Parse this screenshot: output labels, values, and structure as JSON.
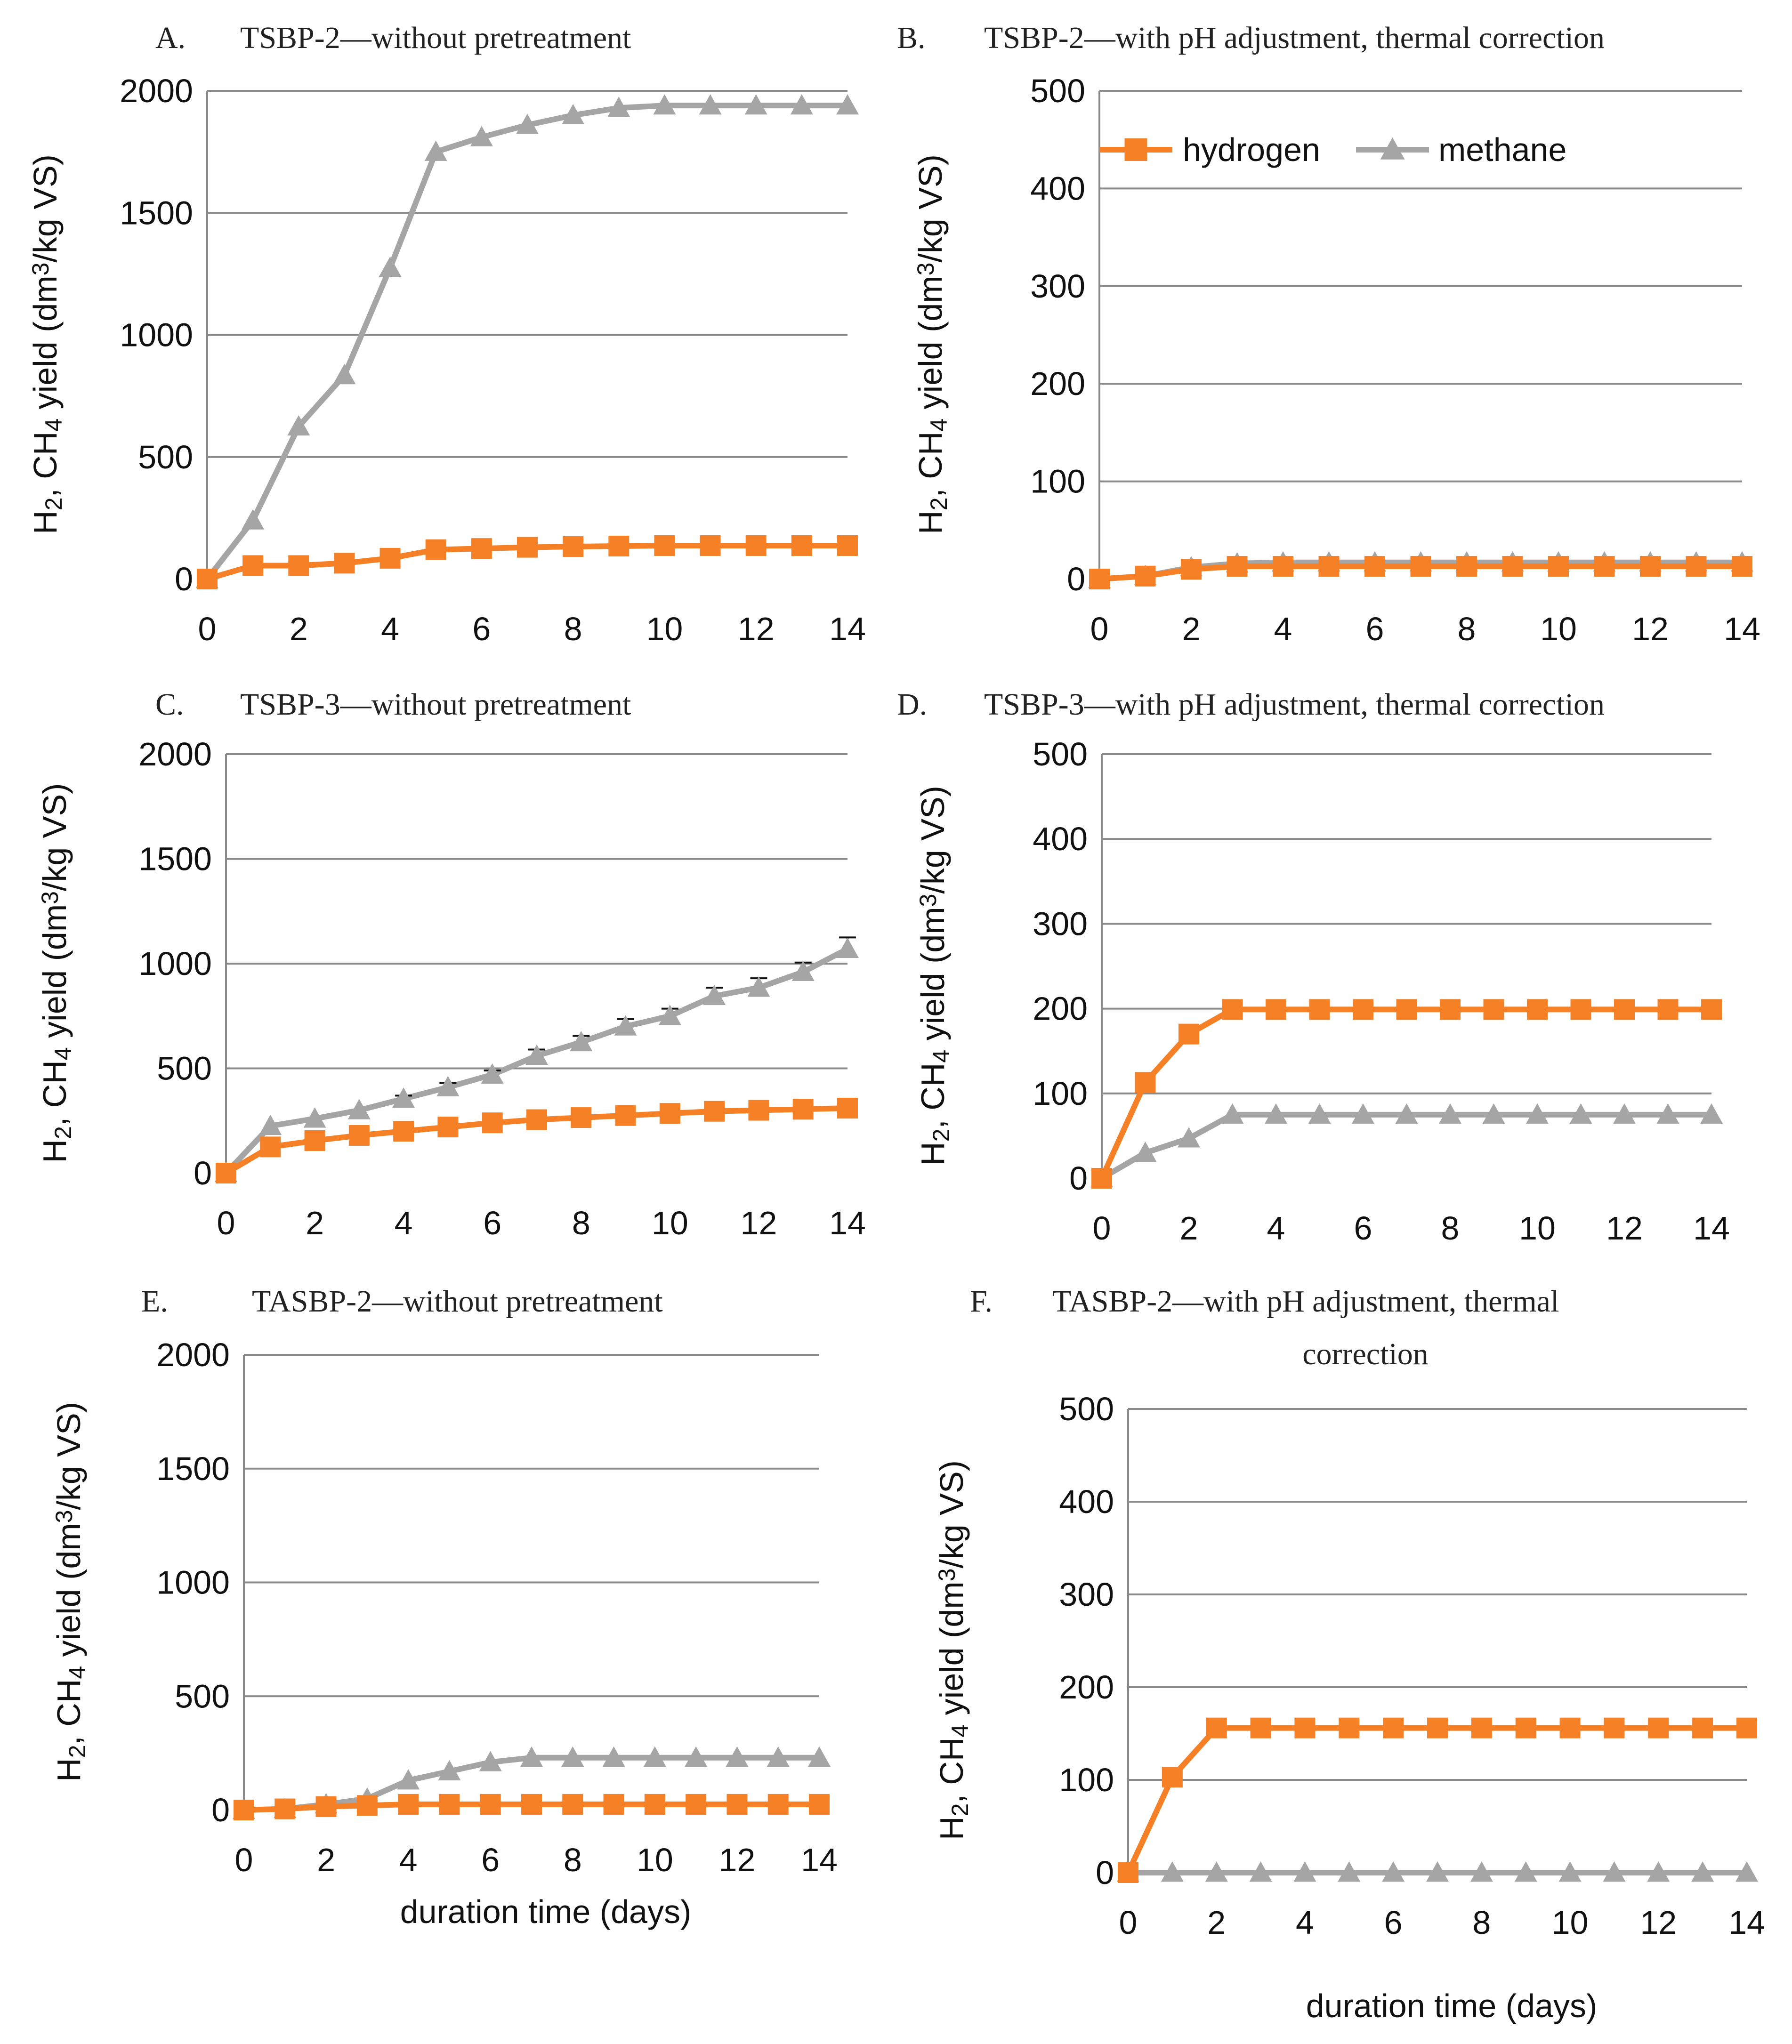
{
  "colors": {
    "hydrogen": "#F58025",
    "methane": "#A5A5A5",
    "grid": "#8A8A8A",
    "error_bar": "#111111"
  },
  "legend": {
    "hydrogen": "hydrogen",
    "methane": "methane"
  },
  "chart_data": [
    {
      "id": "A",
      "type": "line",
      "letter": "A.",
      "title": "TSBP-2—without pretreatment",
      "ylabel": "H2, CH4 yield (dm3/kg VS)",
      "xlabel": "",
      "ylim": [
        0,
        2000
      ],
      "yticks": [
        0,
        500,
        1000,
        1500,
        2000
      ],
      "xlim": [
        0,
        14
      ],
      "xticks": [
        0,
        2,
        4,
        6,
        8,
        10,
        12,
        14
      ],
      "grid": true,
      "legend": false,
      "x": [
        0,
        1,
        2,
        3,
        4,
        5,
        6,
        7,
        8,
        9,
        10,
        11,
        12,
        13,
        14
      ],
      "series": [
        {
          "name": "hydrogen",
          "marker": "square",
          "values": [
            0,
            55,
            55,
            65,
            85,
            120,
            125,
            130,
            133,
            135,
            137,
            137,
            137,
            137,
            137
          ]
        },
        {
          "name": "methane",
          "marker": "triangle",
          "values": [
            0,
            240,
            625,
            835,
            1275,
            1750,
            1810,
            1860,
            1900,
            1930,
            1940,
            1940,
            1940,
            1940,
            1940
          ]
        }
      ]
    },
    {
      "id": "B",
      "type": "line",
      "letter": "B.",
      "title": "TSBP-2—with pH adjustment, thermal correction",
      "ylabel": "H2, CH4 yield (dm3/kg VS)",
      "xlabel": "",
      "ylim": [
        0,
        500
      ],
      "yticks": [
        0,
        100,
        200,
        300,
        400,
        500
      ],
      "xlim": [
        0,
        14
      ],
      "xticks": [
        0,
        2,
        4,
        6,
        8,
        10,
        12,
        14
      ],
      "grid": true,
      "legend": true,
      "x": [
        0,
        1,
        2,
        3,
        4,
        5,
        6,
        7,
        8,
        9,
        10,
        11,
        12,
        13,
        14
      ],
      "series": [
        {
          "name": "hydrogen",
          "marker": "square",
          "values": [
            0,
            3,
            10,
            13,
            13,
            13,
            13,
            13,
            13,
            13,
            13,
            13,
            13,
            13,
            13
          ]
        },
        {
          "name": "methane",
          "marker": "triangle",
          "values": [
            0,
            3,
            12,
            16,
            17,
            17,
            17,
            17,
            17,
            17,
            17,
            17,
            17,
            17,
            17
          ]
        }
      ]
    },
    {
      "id": "C",
      "type": "line",
      "letter": "C.",
      "title": "TSBP-3—without pretreatment",
      "ylabel": "H2, CH4 yield (dm3/kg VS)",
      "xlabel": "",
      "ylim": [
        0,
        2000
      ],
      "yticks": [
        0,
        500,
        1000,
        1500,
        2000
      ],
      "xlim": [
        0,
        14
      ],
      "xticks": [
        0,
        2,
        4,
        6,
        8,
        10,
        12,
        14
      ],
      "grid": true,
      "legend": false,
      "x": [
        0,
        1,
        2,
        3,
        4,
        5,
        6,
        7,
        8,
        9,
        10,
        11,
        12,
        13,
        14
      ],
      "series": [
        {
          "name": "hydrogen",
          "marker": "square",
          "values": [
            0,
            125,
            155,
            180,
            200,
            220,
            240,
            255,
            265,
            275,
            285,
            295,
            300,
            305,
            310
          ]
        },
        {
          "name": "methane",
          "marker": "triangle",
          "values": [
            0,
            225,
            260,
            300,
            355,
            410,
            470,
            560,
            625,
            700,
            750,
            845,
            885,
            960,
            1070
          ],
          "error": [
            0,
            0,
            0,
            0,
            15,
            20,
            20,
            30,
            30,
            35,
            35,
            40,
            45,
            45,
            55
          ]
        }
      ]
    },
    {
      "id": "D",
      "type": "line",
      "letter": "D.",
      "title": "TSBP-3—with pH adjustment, thermal correction",
      "ylabel": "H2, CH4 yield (dm3/kg VS)",
      "xlabel": "",
      "ylim": [
        0,
        500
      ],
      "yticks": [
        0,
        100,
        200,
        300,
        400,
        500
      ],
      "xlim": [
        0,
        14
      ],
      "xticks": [
        0,
        2,
        4,
        6,
        8,
        10,
        12,
        14
      ],
      "grid": true,
      "legend": false,
      "x": [
        0,
        1,
        2,
        3,
        4,
        5,
        6,
        7,
        8,
        9,
        10,
        11,
        12,
        13,
        14
      ],
      "series": [
        {
          "name": "hydrogen",
          "marker": "square",
          "values": [
            0,
            113,
            170,
            199,
            199,
            199,
            199,
            199,
            199,
            199,
            199,
            199,
            199,
            199,
            199
          ]
        },
        {
          "name": "methane",
          "marker": "triangle",
          "values": [
            0,
            30,
            47,
            75,
            75,
            75,
            75,
            75,
            75,
            75,
            75,
            75,
            75,
            75,
            75
          ]
        }
      ]
    },
    {
      "id": "E",
      "type": "line",
      "letter": "E.",
      "title": "TASBP-2—without pretreatment",
      "ylabel": "H2, CH4 yield (dm3/kg VS)",
      "xlabel": "duration time (days)",
      "ylim": [
        0,
        2000
      ],
      "yticks": [
        0,
        500,
        1000,
        1500,
        2000
      ],
      "xlim": [
        0,
        14
      ],
      "xticks": [
        0,
        2,
        4,
        6,
        8,
        10,
        12,
        14
      ],
      "grid": true,
      "legend": false,
      "x": [
        0,
        1,
        2,
        3,
        4,
        5,
        6,
        7,
        8,
        9,
        10,
        11,
        12,
        13,
        14
      ],
      "series": [
        {
          "name": "hydrogen",
          "marker": "square",
          "values": [
            0,
            5,
            15,
            20,
            25,
            25,
            25,
            25,
            25,
            25,
            25,
            25,
            25,
            25,
            25
          ]
        },
        {
          "name": "methane",
          "marker": "triangle",
          "values": [
            0,
            5,
            25,
            50,
            130,
            170,
            210,
            230,
            230,
            230,
            230,
            230,
            230,
            230,
            230
          ]
        }
      ]
    },
    {
      "id": "F",
      "type": "line",
      "letter": "F.",
      "title": "TASBP-2—with pH adjustment, thermal correction",
      "ylabel": "H2, CH4 yield (dm3/kg VS)",
      "xlabel": "duration time (days)",
      "ylim": [
        0,
        500
      ],
      "yticks": [
        0,
        100,
        200,
        300,
        400,
        500
      ],
      "xlim": [
        0,
        14
      ],
      "xticks": [
        0,
        2,
        4,
        6,
        8,
        10,
        12,
        14
      ],
      "grid": true,
      "legend": false,
      "x": [
        0,
        1,
        2,
        3,
        4,
        5,
        6,
        7,
        8,
        9,
        10,
        11,
        12,
        13,
        14
      ],
      "series": [
        {
          "name": "hydrogen",
          "marker": "square",
          "values": [
            0,
            103,
            156,
            156,
            156,
            156,
            156,
            156,
            156,
            156,
            156,
            156,
            156,
            156,
            156
          ]
        },
        {
          "name": "methane",
          "marker": "triangle",
          "values": [
            0,
            0,
            0,
            0,
            0,
            0,
            0,
            0,
            0,
            0,
            0,
            0,
            0,
            0,
            0
          ]
        }
      ]
    }
  ]
}
